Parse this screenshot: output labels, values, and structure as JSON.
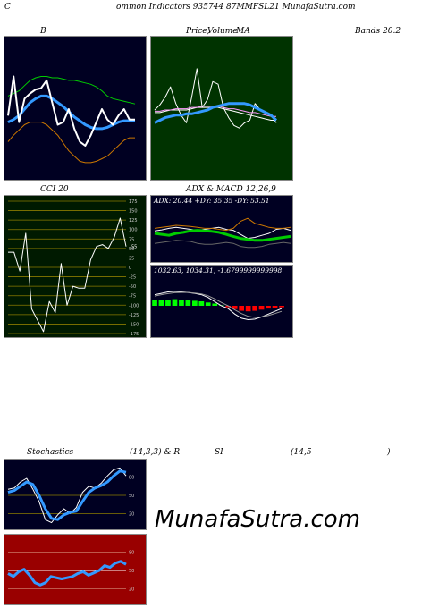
{
  "header": {
    "c": "C",
    "title": "ommon  Indicators 935744  87MMFSL21 MunafaSutra.com"
  },
  "labels": {
    "b": "B",
    "price": "Price,",
    "price_over": "Volume",
    "ma": "MA",
    "bands": "Bands 20.2",
    "cci": "CCI 20",
    "adx_macd": "ADX  & MACD 12,26,9",
    "adx_line": "ADX: 20.44  +DY: 35.35 -DY: 53.51",
    "macd_line": "1032.63,  1034.31,  -1.6799999999998",
    "stoch": "Stochastics",
    "stoch_params": "(14,3,3) & R",
    "si": "SI",
    "rsi_params": "(14,5",
    "paren": ")"
  },
  "watermark": "MunafaSutra.com",
  "colors": {
    "panel_dark": "#000022",
    "price_bg": "#003300",
    "cci_bg": "#001a00",
    "rsi_bg": "#990000",
    "blue": "#3399ff",
    "green": "#00cc00",
    "orange": "#cc7700"
  },
  "chart_data": [
    {
      "id": "bands",
      "type": "line",
      "ylim": [
        0,
        100
      ],
      "series": [
        {
          "values": [
            60,
            62,
            64,
            68,
            72,
            74,
            75,
            75,
            74,
            74,
            73,
            72,
            72,
            71,
            70,
            69,
            67,
            64,
            60,
            58,
            57,
            56,
            55,
            54
          ],
          "color": "#00cc00"
        },
        {
          "values": [
            25,
            30,
            34,
            38,
            40,
            40,
            40,
            38,
            34,
            30,
            24,
            18,
            14,
            10,
            9,
            9,
            10,
            12,
            14,
            18,
            22,
            26,
            28,
            28
          ],
          "color": "#cc7700"
        },
        {
          "values": [
            40,
            42,
            45,
            50,
            55,
            58,
            60,
            60,
            58,
            55,
            52,
            48,
            44,
            41,
            38,
            36,
            35,
            35,
            36,
            38,
            40,
            41,
            41,
            41
          ],
          "color": "#3399ff",
          "width": 3
        },
        {
          "values": [
            45,
            75,
            40,
            58,
            62,
            65,
            66,
            72,
            55,
            38,
            40,
            50,
            35,
            25,
            22,
            30,
            40,
            50,
            42,
            38,
            45,
            50,
            42,
            42
          ],
          "color": "#ffffff",
          "width": 2
        }
      ]
    },
    {
      "id": "price_ma",
      "type": "line",
      "ylim": [
        0,
        100
      ],
      "series": [
        {
          "values": [
            50,
            54,
            60,
            68,
            55,
            46,
            40,
            60,
            82,
            52,
            58,
            72,
            70,
            52,
            44,
            38,
            36,
            40,
            42,
            55,
            50,
            48,
            46,
            40
          ],
          "color": "#ffffff"
        },
        {
          "values": [
            48,
            48,
            49,
            50,
            50,
            50,
            50,
            51,
            52,
            52,
            52,
            52,
            52,
            51,
            50,
            49,
            48,
            47,
            46,
            45,
            44,
            43,
            42,
            42
          ],
          "color": "#ffffff"
        },
        {
          "values": [
            49,
            49,
            50,
            50,
            51,
            51,
            51,
            52,
            52,
            53,
            53,
            53,
            53,
            52,
            51,
            51,
            50,
            49,
            48,
            48,
            47,
            46,
            45,
            45
          ],
          "color": "#ff99ff"
        },
        {
          "values": [
            40,
            42,
            44,
            45,
            46,
            46,
            47,
            47,
            48,
            49,
            50,
            52,
            53,
            54,
            55,
            55,
            55,
            55,
            54,
            52,
            50,
            48,
            46,
            42
          ],
          "color": "#3399ff",
          "width": 3
        }
      ]
    },
    {
      "id": "cci",
      "type": "line",
      "ylim": [
        -175,
        175
      ],
      "ticks": [
        "175",
        "150",
        "125",
        "100",
        "75",
        "50",
        "25",
        "0",
        "-25",
        "-50",
        "-75",
        "-100",
        "-125",
        "-150",
        "-175"
      ],
      "last_label": "55",
      "series": [
        {
          "values": [
            40,
            40,
            -10,
            90,
            -110,
            -140,
            -170,
            -90,
            -120,
            10,
            -100,
            -50,
            -55,
            -55,
            20,
            55,
            60,
            50,
            80,
            130,
            55
          ],
          "color": "#ffffff"
        }
      ]
    },
    {
      "id": "adx",
      "type": "line",
      "ylim": [
        0,
        100
      ],
      "series": [
        {
          "values": [
            55,
            57,
            60,
            62,
            60,
            58,
            56,
            58,
            60,
            62,
            58,
            56,
            48,
            40,
            42,
            46,
            50,
            58,
            60,
            56
          ],
          "color": "#ffffff"
        },
        {
          "values": [
            50,
            48,
            46,
            50,
            52,
            55,
            56,
            55,
            54,
            52,
            48,
            44,
            40,
            38,
            36,
            36,
            38,
            40,
            42,
            44
          ],
          "color": "#00cc00",
          "width": 3
        },
        {
          "values": [
            60,
            62,
            64,
            66,
            65,
            64,
            62,
            60,
            60,
            58,
            56,
            60,
            74,
            80,
            70,
            66,
            62,
            60,
            60,
            62
          ],
          "color": "#cc7700"
        },
        {
          "values": [
            30,
            32,
            34,
            36,
            35,
            34,
            30,
            28,
            28,
            30,
            32,
            30,
            24,
            22,
            22,
            24,
            28,
            30,
            32,
            30
          ],
          "color": "#666666"
        }
      ]
    },
    {
      "id": "macd",
      "type": "bar",
      "ylim": [
        -100,
        100
      ],
      "series": [
        {
          "name": "macd",
          "values": [
            40,
            45,
            50,
            52,
            50,
            48,
            45,
            40,
            30,
            15,
            0,
            -10,
            -30,
            -45,
            -50,
            -48,
            -40,
            -30,
            -20,
            -10
          ],
          "color": "#ffffff"
        },
        {
          "name": "signal",
          "values": [
            35,
            40,
            44,
            47,
            48,
            48,
            46,
            43,
            36,
            25,
            12,
            0,
            -15,
            -28,
            -38,
            -42,
            -40,
            -35,
            -28,
            -20
          ],
          "color": "#999999"
        },
        {
          "name": "histogram",
          "values": [
            20,
            22,
            22,
            24,
            22,
            20,
            18,
            16,
            12,
            8,
            2,
            -5,
            -12,
            -18,
            -20,
            -18,
            -14,
            -10,
            -8,
            -5
          ]
        }
      ]
    },
    {
      "id": "stochastics",
      "type": "line",
      "ylim": [
        0,
        100
      ],
      "ticks": [
        "80",
        "50",
        "20"
      ],
      "series": [
        {
          "values": [
            60,
            62,
            72,
            78,
            60,
            40,
            10,
            5,
            18,
            28,
            20,
            30,
            55,
            65,
            62,
            70,
            82,
            92,
            95,
            82
          ],
          "color": "#ffffff"
        },
        {
          "values": [
            55,
            58,
            65,
            72,
            68,
            50,
            28,
            12,
            10,
            18,
            22,
            24,
            40,
            55,
            62,
            66,
            72,
            82,
            90,
            88
          ],
          "color": "#3399ff",
          "width": 3
        }
      ]
    },
    {
      "id": "rsi",
      "type": "line",
      "ylim": [
        0,
        100
      ],
      "ticks": [
        "80",
        "50",
        "20"
      ],
      "series": [
        {
          "values": [
            50,
            50,
            50,
            50,
            50,
            50,
            50,
            50,
            50,
            50,
            50,
            50,
            50,
            50,
            50,
            50,
            50,
            50,
            50,
            50,
            50,
            50,
            50
          ],
          "color": "#ffffff"
        },
        {
          "values": [
            45,
            40,
            48,
            52,
            42,
            30,
            26,
            30,
            40,
            38,
            36,
            38,
            40,
            45,
            48,
            42,
            46,
            50,
            58,
            55,
            62,
            65,
            60
          ],
          "color": "#3399ff",
          "width": 3
        }
      ]
    }
  ]
}
